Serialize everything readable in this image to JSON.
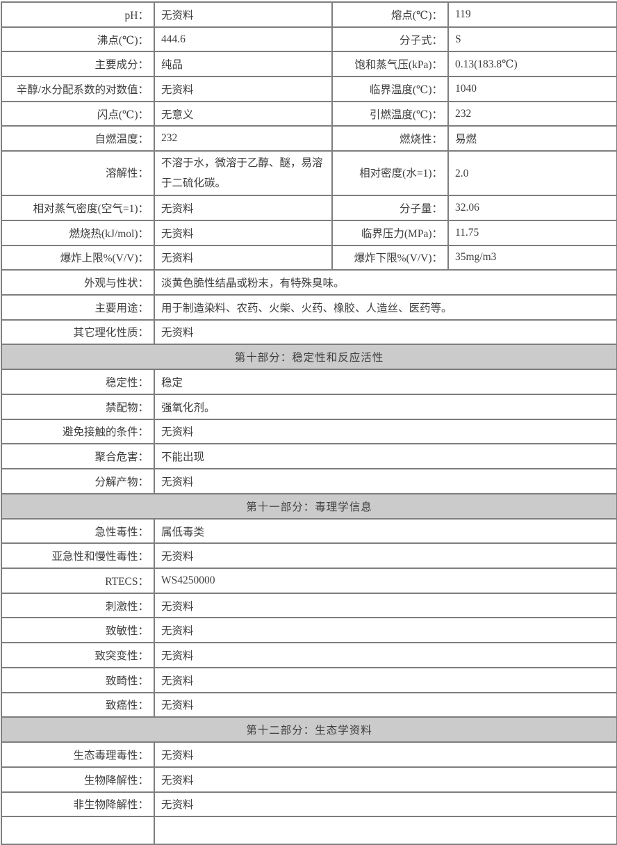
{
  "document": {
    "kind": "chemical-safety-data-sheet-table",
    "language": "zh-CN"
  },
  "colors": {
    "table_border": "#7e7e7e",
    "section_header_background": "#cbcbcb",
    "cell_background": "#ffffff",
    "text": "#3d3d3d"
  },
  "table": {
    "rows": [
      {
        "type": "quad",
        "c1": "pH：",
        "v1": "无资料",
        "c2": "熔点(℃)：",
        "v2": "119"
      },
      {
        "type": "quad",
        "c1": "沸点(℃)：",
        "v1": "444.6",
        "c2": "分子式：",
        "v2": "S"
      },
      {
        "type": "quad",
        "c1": "主要成分：",
        "v1": "纯品",
        "c2": "饱和蒸气压(kPa)：",
        "v2": "0.13(183.8℃)"
      },
      {
        "type": "quad",
        "c1": "辛醇/水分配系数的对数值：",
        "v1": "无资料",
        "c2": "临界温度(℃)：",
        "v2": "1040"
      },
      {
        "type": "quad",
        "c1": "闪点(℃)：",
        "v1": "无意义",
        "c2": "引燃温度(℃)：",
        "v2": "232"
      },
      {
        "type": "quad",
        "c1": "自燃温度：",
        "v1": "232",
        "c2": "燃烧性：",
        "v2": "易燃"
      },
      {
        "type": "quad",
        "tall": true,
        "c1": "溶解性：",
        "v1": "不溶于水，微溶于乙醇、醚，易溶于二硫化碳。",
        "c2": "相对密度(水=1)：",
        "v2": "2.0"
      },
      {
        "type": "quad",
        "c1": "相对蒸气密度(空气=1)：",
        "v1": "无资料",
        "c2": "分子量：",
        "v2": "32.06"
      },
      {
        "type": "quad",
        "c1": "燃烧热(kJ/mol)：",
        "v1": "无资料",
        "c2": "临界压力(MPa)：",
        "v2": "11.75"
      },
      {
        "type": "quad",
        "c1": "爆炸上限%(V/V)：",
        "v1": "无资料",
        "c2": "爆炸下限%(V/V)：",
        "v2": "35mg/m3"
      },
      {
        "type": "wide",
        "c1": "外观与性状：",
        "v1": "淡黄色脆性结晶或粉末，有特殊臭味。"
      },
      {
        "type": "wide",
        "c1": "主要用途：",
        "v1": "用于制造染料、农药、火柴、火药、橡胶、人造丝、医药等。"
      },
      {
        "type": "wide",
        "c1": "其它理化性质：",
        "v1": "无资料"
      },
      {
        "type": "section",
        "title": "第十部分：稳定性和反应活性"
      },
      {
        "type": "wide",
        "c1": "稳定性：",
        "v1": "稳定"
      },
      {
        "type": "wide",
        "c1": "禁配物：",
        "v1": "强氧化剂。"
      },
      {
        "type": "wide",
        "c1": "避免接触的条件：",
        "v1": "无资料"
      },
      {
        "type": "wide",
        "c1": "聚合危害：",
        "v1": "不能出现"
      },
      {
        "type": "wide",
        "c1": "分解产物：",
        "v1": "无资料"
      },
      {
        "type": "section",
        "title": "第十一部分：毒理学信息"
      },
      {
        "type": "wide",
        "c1": "急性毒性：",
        "v1": "属低毒类"
      },
      {
        "type": "wide",
        "c1": "亚急性和慢性毒性：",
        "v1": "无资料"
      },
      {
        "type": "wide",
        "c1": "RTECS：",
        "v1": "WS4250000"
      },
      {
        "type": "wide",
        "c1": "刺激性：",
        "v1": "无资料"
      },
      {
        "type": "wide",
        "c1": "致敏性：",
        "v1": "无资料"
      },
      {
        "type": "wide",
        "c1": "致突变性：",
        "v1": "无资料"
      },
      {
        "type": "wide",
        "c1": "致畸性：",
        "v1": "无资料"
      },
      {
        "type": "wide",
        "c1": "致癌性：",
        "v1": "无资料"
      },
      {
        "type": "section",
        "title": "第十二部分：生态学资料"
      },
      {
        "type": "wide",
        "c1": "生态毒理毒性：",
        "v1": "无资料"
      },
      {
        "type": "wide",
        "c1": "生物降解性：",
        "v1": "无资料"
      },
      {
        "type": "wide",
        "c1": "非生物降解性：",
        "v1": "无资料"
      },
      {
        "type": "empty"
      }
    ]
  }
}
